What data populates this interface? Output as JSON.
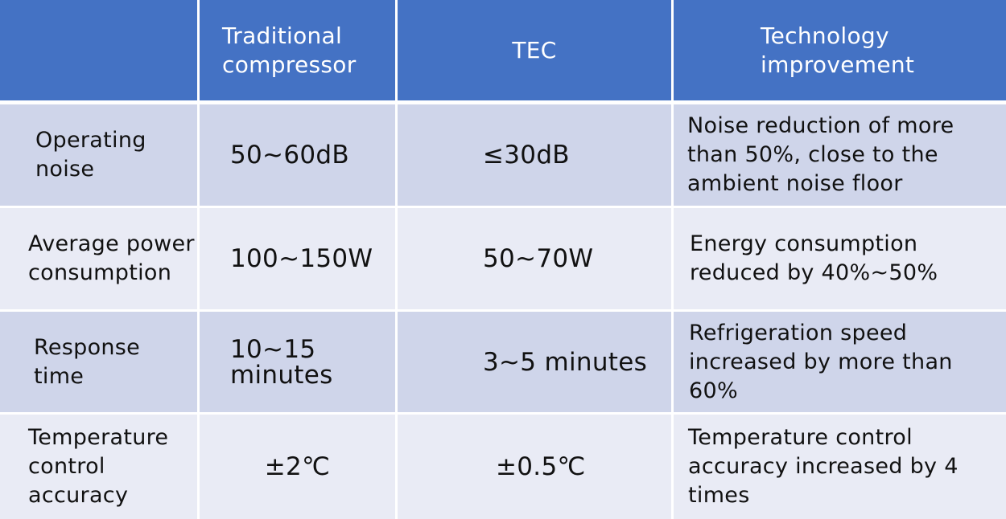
{
  "table": {
    "headers": [
      "",
      "Traditional compressor",
      "TEC",
      "Technology improvement"
    ],
    "rows": [
      {
        "label": "Operating noise",
        "traditional": "50~60dB",
        "tec": "≤30dB",
        "improvement": "Noise reduction of more than 50%, close to the ambient noise floor"
      },
      {
        "label": "Average power consumption",
        "traditional": "100~150W",
        "tec": "50~70W",
        "improvement": "Energy consumption reduced by 40%~50%"
      },
      {
        "label": "Response time",
        "traditional": "10~15 minutes",
        "tec": "3~5 minutes",
        "improvement": "Refrigeration speed increased by more than 60%"
      },
      {
        "label": "Temperature control accuracy",
        "traditional": "±2℃",
        "tec": "±0.5℃",
        "improvement": "Temperature control accuracy increased by 4 times"
      }
    ]
  },
  "colors": {
    "header_bg": "#4472c4",
    "row_dark": "#cfd5ea",
    "row_light": "#e9ebf5"
  }
}
